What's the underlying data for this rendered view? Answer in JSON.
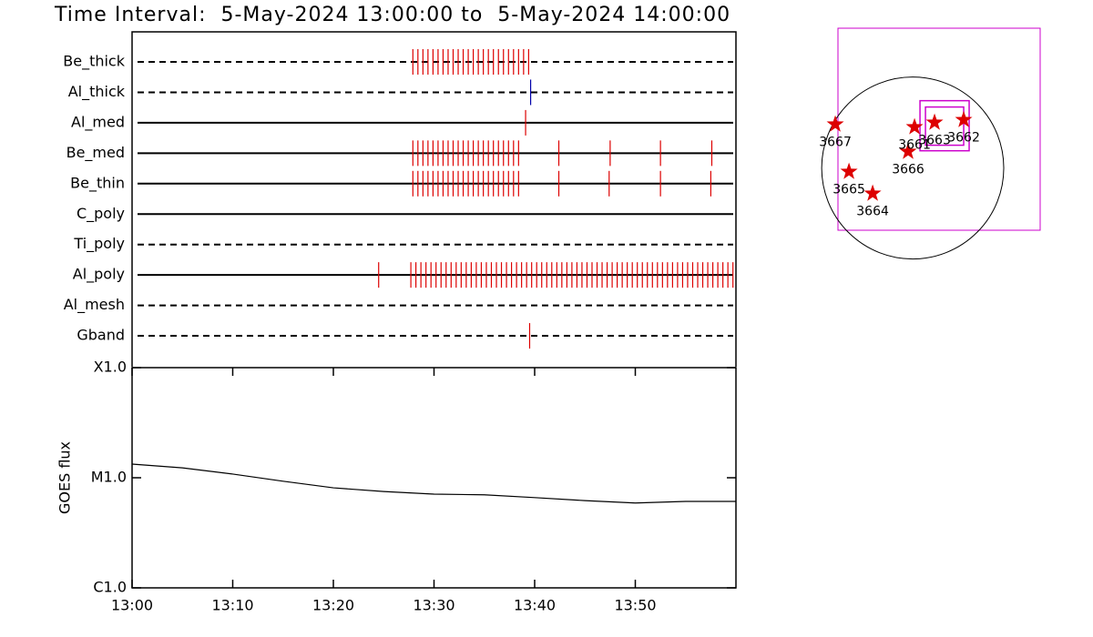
{
  "chart_data": [
    {
      "type": "event",
      "title": "Time Interval:  5-May-2024 13:00:00 to  5-May-2024 14:00:00",
      "xlim": [
        0,
        60
      ],
      "rows": [
        {
          "name": "Be_thick",
          "style": "dashed",
          "color": "#dd0000",
          "times": [
            27.9,
            28.4,
            28.9,
            29.4,
            29.9,
            30.4,
            30.9,
            31.4,
            31.9,
            32.4,
            32.9,
            33.4,
            33.9,
            34.4,
            34.9,
            35.4,
            35.9,
            36.4,
            36.9,
            37.4,
            37.9,
            38.4,
            38.9,
            39.4
          ]
        },
        {
          "name": "Al_thick",
          "style": "dashed",
          "color": "#0000aa",
          "times": [
            39.6
          ]
        },
        {
          "name": "Al_med",
          "style": "solid",
          "color": "#dd0000",
          "times": [
            39.1
          ]
        },
        {
          "name": "Be_med",
          "style": "solid",
          "color": "#dd0000",
          "times": [
            27.9,
            28.4,
            28.9,
            29.4,
            29.9,
            30.4,
            30.9,
            31.4,
            31.9,
            32.4,
            32.9,
            33.4,
            33.9,
            34.4,
            34.9,
            35.4,
            35.9,
            36.4,
            36.9,
            37.4,
            37.9,
            38.4,
            42.4,
            47.5,
            52.5,
            57.6
          ]
        },
        {
          "name": "Be_thin",
          "style": "solid",
          "color": "#dd0000",
          "times": [
            27.9,
            28.4,
            28.9,
            29.4,
            29.9,
            30.4,
            30.9,
            31.4,
            31.9,
            32.4,
            32.9,
            33.4,
            33.9,
            34.4,
            34.9,
            35.4,
            35.9,
            36.4,
            36.9,
            37.4,
            37.9,
            38.4,
            42.4,
            47.4,
            52.5,
            57.5
          ]
        },
        {
          "name": "C_poly",
          "style": "solid",
          "color": "#dd0000",
          "times": []
        },
        {
          "name": "Ti_poly",
          "style": "dashed",
          "color": "#dd0000",
          "times": []
        },
        {
          "name": "Al_poly",
          "style": "solid",
          "color": "#dd0000",
          "times": [
            24.5,
            27.7,
            28.2,
            28.7,
            29.2,
            29.7,
            30.2,
            30.7,
            31.2,
            31.7,
            32.2,
            32.7,
            33.2,
            33.7,
            34.2,
            34.7,
            35.2,
            35.7,
            36.2,
            36.7,
            37.2,
            37.7,
            38.2,
            38.7,
            39.2,
            39.7,
            40.2,
            40.7,
            41.2,
            41.7,
            42.2,
            42.7,
            43.2,
            43.7,
            44.2,
            44.7,
            45.2,
            45.7,
            46.2,
            46.7,
            47.2,
            47.7,
            48.2,
            48.7,
            49.2,
            49.7,
            50.2,
            50.7,
            51.2,
            51.7,
            52.2,
            52.7,
            53.2,
            53.7,
            54.2,
            54.7,
            55.2,
            55.7,
            56.2,
            56.7,
            57.2,
            57.7,
            58.2,
            58.7,
            59.2,
            59.7
          ]
        },
        {
          "name": "Al_mesh",
          "style": "dashed",
          "color": "#dd0000",
          "times": []
        },
        {
          "name": "Gband",
          "style": "dashed",
          "color": "#dd0000",
          "times": [
            39.5
          ]
        }
      ]
    },
    {
      "type": "line",
      "ylabel": "GOES flux",
      "log_scale": true,
      "color": "#000000",
      "x": [
        0,
        5,
        10,
        15,
        20,
        25,
        30,
        35,
        40,
        45,
        50,
        55,
        60
      ],
      "values": [
        1.33e-05,
        1.23e-05,
        1.08e-05,
        9.3e-06,
        8.1e-06,
        7.5e-06,
        7.1e-06,
        7e-06,
        6.6e-06,
        6.2e-06,
        5.9e-06,
        6.1e-06,
        6.1e-06
      ],
      "xlim": [
        0,
        60
      ],
      "xticks": [
        {
          "value": 0,
          "label": "13:00"
        },
        {
          "value": 10,
          "label": "13:10"
        },
        {
          "value": 20,
          "label": "13:20"
        },
        {
          "value": 30,
          "label": "13:30"
        },
        {
          "value": 40,
          "label": "13:40"
        },
        {
          "value": 50,
          "label": "13:50"
        }
      ],
      "ylim": [
        1e-06,
        0.0001
      ],
      "yticks": [
        {
          "value": 0.0001,
          "label": "X1.0"
        },
        {
          "value": 1e-05,
          "label": "M1.0"
        },
        {
          "value": 1e-06,
          "label": "C1.0"
        }
      ]
    },
    {
      "type": "map",
      "xlim": [
        -780,
        1330
      ],
      "ylim": [
        -650,
        1460
      ],
      "solar_radius": 950,
      "color": "#dd0000",
      "box_color": "#cc00cc",
      "fov_boxes": [
        [
          76,
          180,
          589,
          703
        ],
        [
          133,
          238,
          532,
          637
        ]
      ],
      "regions": [
        {
          "name": "3667",
          "x": -808,
          "y": 456
        },
        {
          "name": "3665",
          "x": -665,
          "y": -38
        },
        {
          "name": "3664",
          "x": -418,
          "y": -266
        },
        {
          "name": "3666",
          "x": -48,
          "y": 171
        },
        {
          "name": "3661",
          "x": 19,
          "y": 428
        },
        {
          "name": "3663",
          "x": 228,
          "y": 475
        },
        {
          "name": "3662",
          "x": 532,
          "y": 503
        }
      ]
    }
  ]
}
